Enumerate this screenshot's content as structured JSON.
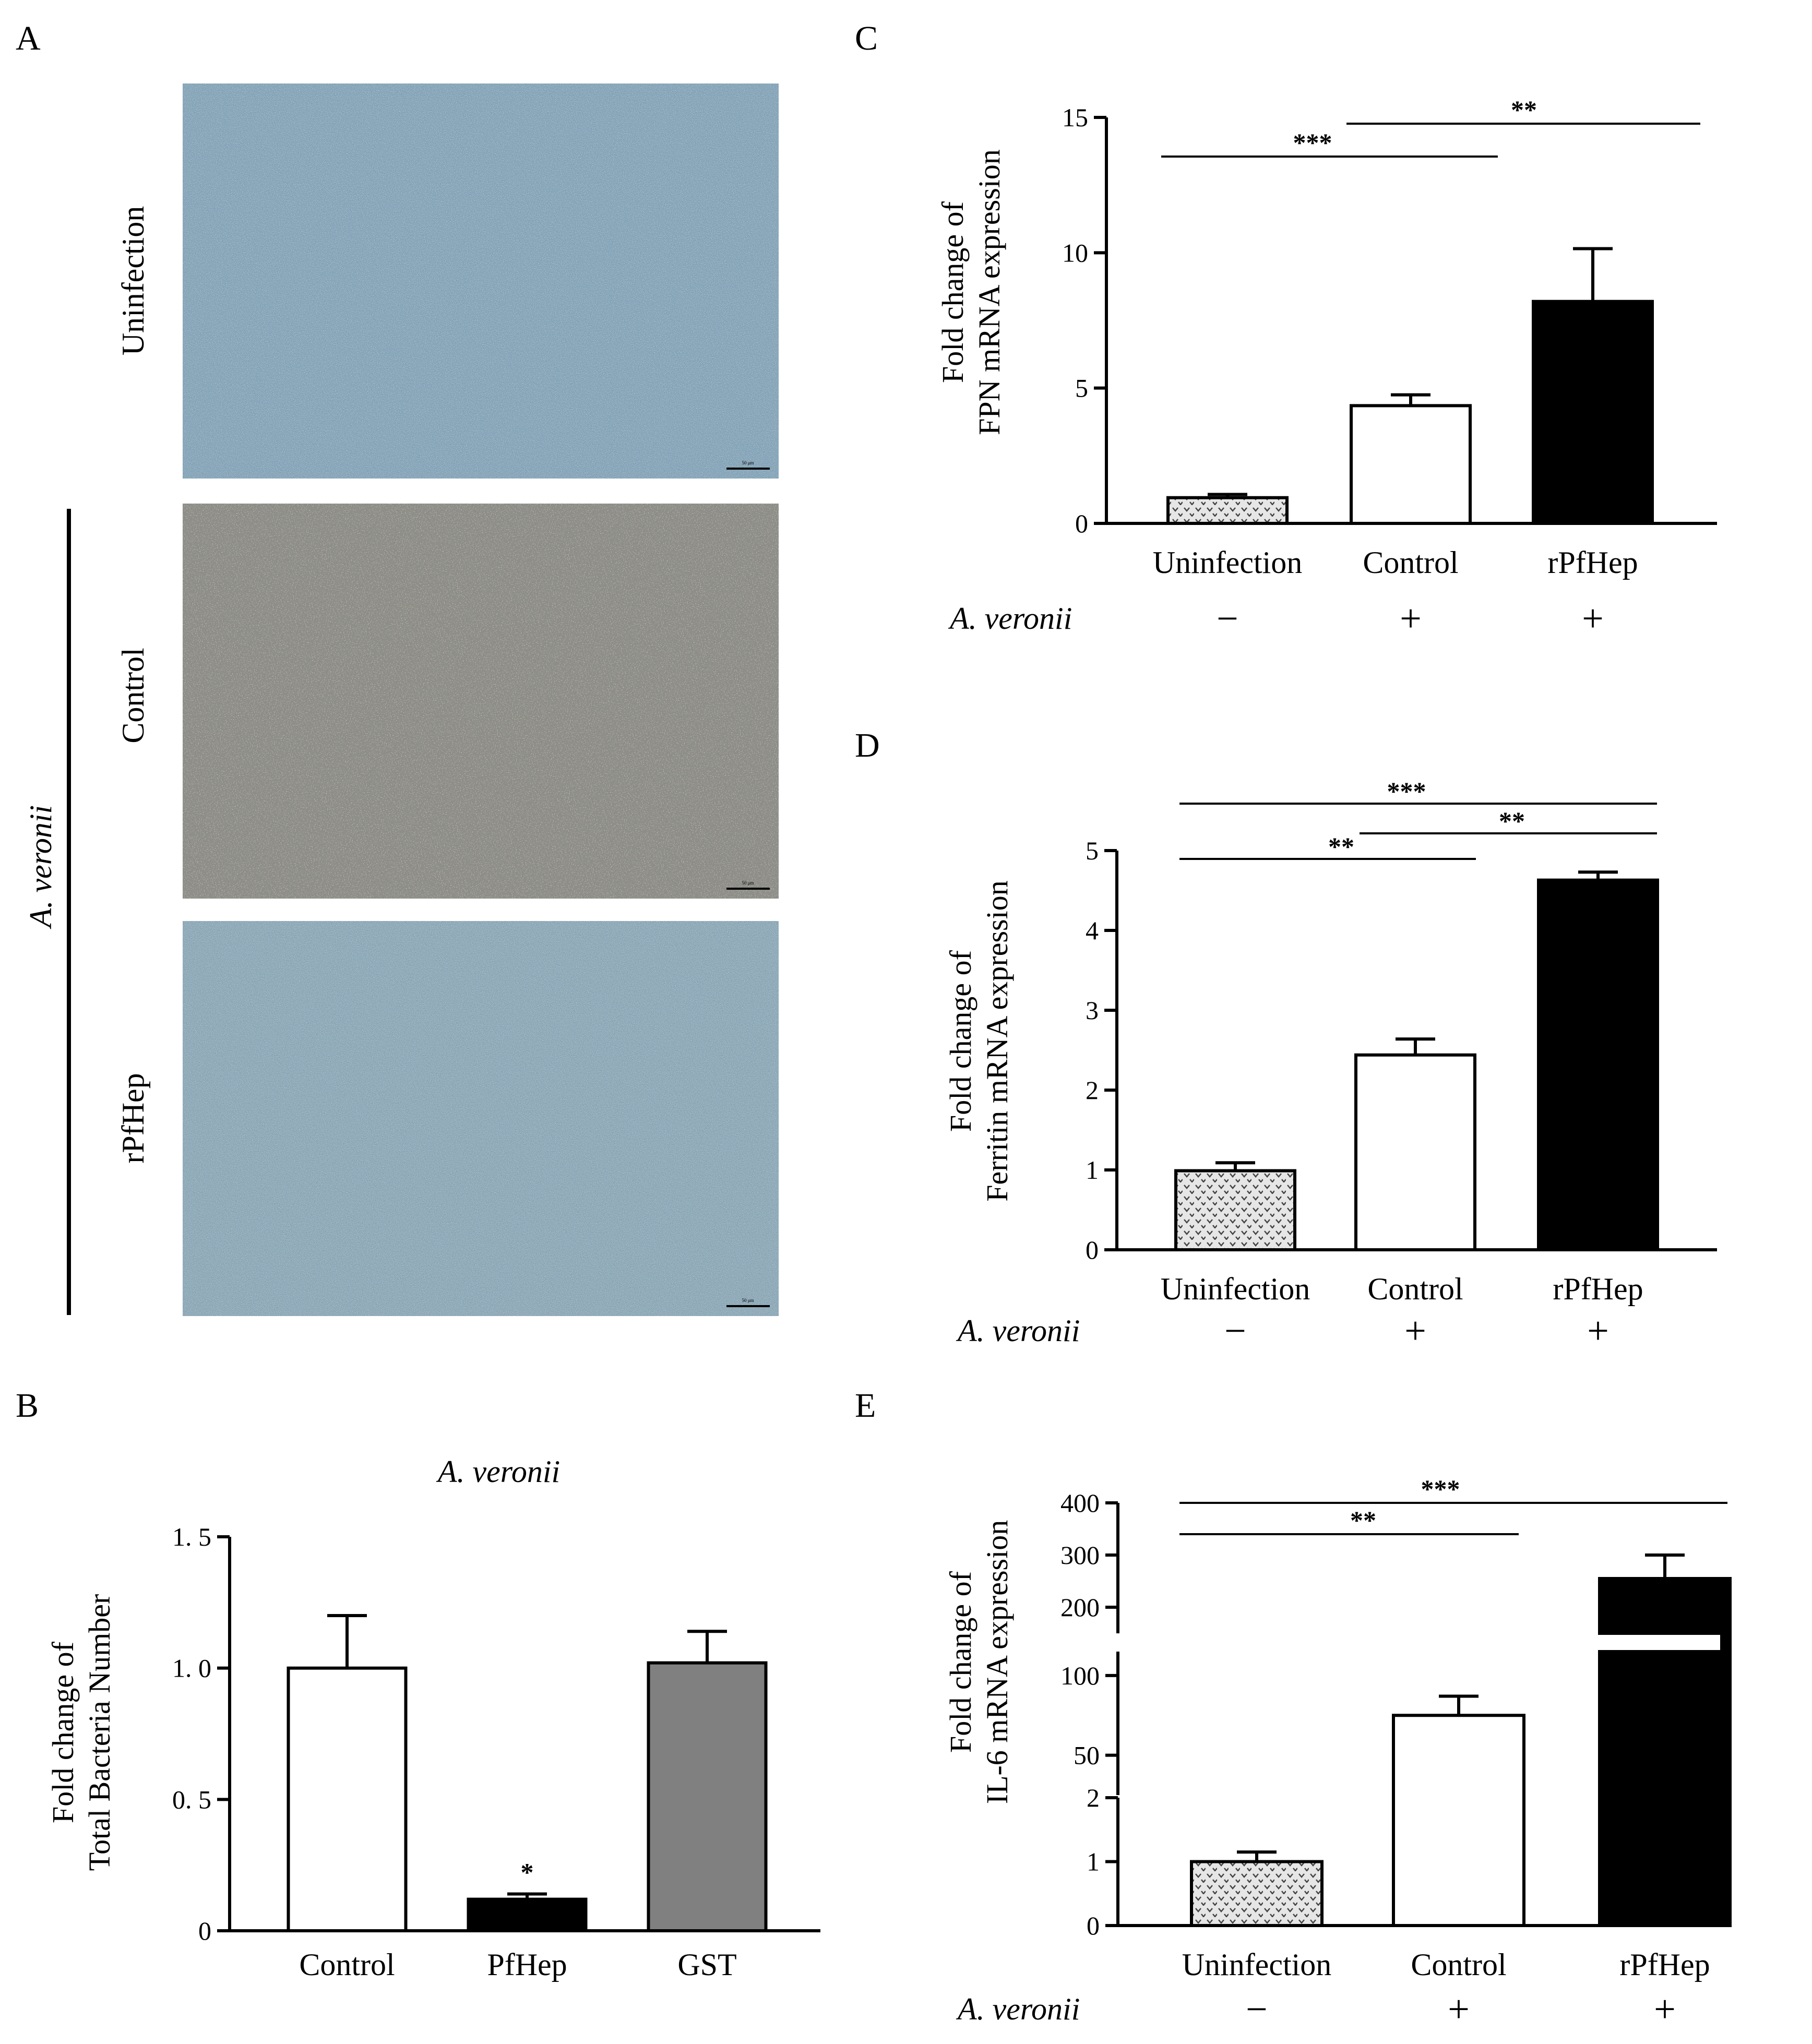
{
  "panels": {
    "A": {
      "letter": "A",
      "group_label": "A. veronii",
      "rows": [
        "Uninfection",
        "Control",
        "rPfHep"
      ],
      "scale_bar_text": "50 μm"
    }
  },
  "colors": {
    "uninfection_fill": "#cfcfcf",
    "control_fill": "#ffffff",
    "rpfhep_fill": "#000000",
    "gst_fill": "#808080",
    "micro_blue": "#7e9fb4",
    "micro_grey": "#8d8d88"
  },
  "chart_data": [
    {
      "id": "B",
      "letter": "B",
      "type": "bar",
      "title": "A. veronii",
      "categories": [
        "Control",
        "PfHep",
        "GST"
      ],
      "values": [
        1.0,
        0.12,
        1.02
      ],
      "errors": [
        0.2,
        0.02,
        0.12
      ],
      "ylabel": [
        "Fold change of",
        "Total Bacteria Number"
      ],
      "ylim": [
        0,
        1.5
      ],
      "yticks": [
        0,
        0.5,
        1.0,
        1.5
      ],
      "ytick_labels": [
        "0",
        "0. 5",
        "1. 0",
        "1. 5"
      ],
      "fills": [
        "#ffffff",
        "#000000",
        "#808080"
      ],
      "significance": [
        {
          "bar": "PfHep",
          "label": "*"
        }
      ],
      "grid": false
    },
    {
      "id": "C",
      "letter": "C",
      "type": "bar",
      "categories": [
        "Uninfection",
        "Control",
        "rPfHep"
      ],
      "values": [
        0.95,
        4.35,
        8.2
      ],
      "errors": [
        0.12,
        0.4,
        1.95
      ],
      "ylabel": [
        "Fold change of",
        "FPN mRNA expression"
      ],
      "ylim": [
        0,
        15
      ],
      "yticks": [
        0,
        5,
        10,
        15
      ],
      "ytick_labels": [
        "0",
        "5",
        "10",
        "15"
      ],
      "fills": [
        "pattern",
        "#ffffff",
        "#000000"
      ],
      "treatment_label": "A. veronii",
      "treatment_signs": [
        "−",
        "+",
        "+"
      ],
      "comparisons": [
        {
          "from": "Uninfection",
          "to": "Control",
          "label": "***"
        },
        {
          "from": "Control",
          "to": "rPfHep",
          "label": "**"
        }
      ],
      "grid": false
    },
    {
      "id": "D",
      "letter": "D",
      "type": "bar",
      "categories": [
        "Uninfection",
        "Control",
        "rPfHep"
      ],
      "values": [
        0.99,
        2.44,
        4.63
      ],
      "errors": [
        0.1,
        0.2,
        0.1
      ],
      "ylabel": [
        "Fold change of",
        "Ferritin mRNA expression"
      ],
      "ylim": [
        0,
        5
      ],
      "yticks": [
        0,
        1,
        2,
        3,
        4,
        5
      ],
      "ytick_labels": [
        "0",
        "1",
        "2",
        "3",
        "4",
        "5"
      ],
      "fills": [
        "pattern",
        "#ffffff",
        "#000000"
      ],
      "treatment_label": "A. veronii",
      "treatment_signs": [
        "−",
        "+",
        "+"
      ],
      "comparisons": [
        {
          "from": "Uninfection",
          "to": "rPfHep",
          "label": "***"
        },
        {
          "from": "Control",
          "to": "rPfHep",
          "label": "**"
        },
        {
          "from": "Uninfection",
          "to": "Control",
          "label": "**"
        }
      ],
      "grid": false
    },
    {
      "id": "E",
      "letter": "E",
      "type": "bar",
      "categories": [
        "Uninfection",
        "Control",
        "rPfHep"
      ],
      "values": [
        1.0,
        75,
        255
      ],
      "errors": [
        0.15,
        12,
        45
      ],
      "ylabel": [
        "Fold change of",
        "IL-6 mRNA expression"
      ],
      "broken_axis": true,
      "segments": [
        {
          "range": [
            0,
            2
          ],
          "ticks": [
            0,
            1,
            2
          ]
        },
        {
          "range": [
            25,
            115
          ],
          "ticks": [
            50,
            100
          ]
        },
        {
          "range": [
            150,
            400
          ],
          "ticks": [
            200,
            300,
            400
          ]
        }
      ],
      "fills": [
        "pattern",
        "#ffffff",
        "#000000"
      ],
      "treatment_label": "A. veronii",
      "treatment_signs": [
        "−",
        "+",
        "+"
      ],
      "comparisons": [
        {
          "from": "Uninfection",
          "to": "rPfHep",
          "label": "***"
        },
        {
          "from": "Uninfection",
          "to": "Control",
          "label": "**"
        }
      ],
      "grid": false
    }
  ]
}
